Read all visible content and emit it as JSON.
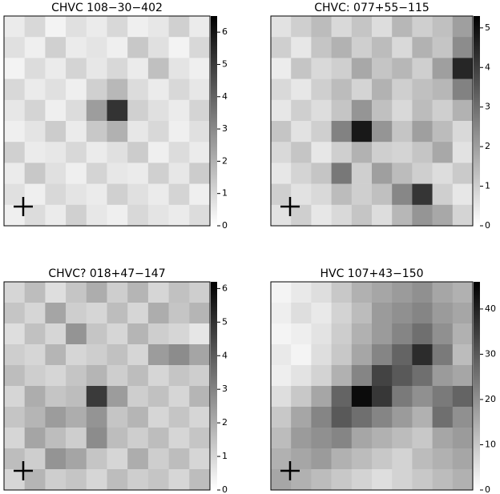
{
  "chart_data": [
    {
      "type": "heatmap",
      "title": "CHVC 108−30−402",
      "colormap": [
        "#ffffff",
        "#000000"
      ],
      "zlim": [
        0,
        6.5
      ],
      "zticks": [
        0,
        1,
        2,
        3,
        4,
        5,
        6
      ],
      "values": [
        [
          0.5,
          1,
          0.3,
          0.8,
          0.5,
          1,
          0.4,
          0.6,
          1.2,
          0.5
        ],
        [
          0.8,
          0.4,
          1.2,
          0.5,
          0.7,
          0.4,
          1.4,
          0.8,
          0.3,
          1
        ],
        [
          0.3,
          0.9,
          0.5,
          1.1,
          0.6,
          1,
          0.5,
          1.6,
          0.7,
          0.4
        ],
        [
          1,
          0.5,
          0.8,
          0.4,
          1.2,
          1.8,
          0.9,
          0.5,
          1,
          0.6
        ],
        [
          0.6,
          1.1,
          0.4,
          0.9,
          2.5,
          5.2,
          1.2,
          0.8,
          0.5,
          1.1
        ],
        [
          0.4,
          0.7,
          1.3,
          0.5,
          1.4,
          2,
          0.6,
          1,
          0.4,
          0.8
        ],
        [
          1.2,
          0.5,
          0.6,
          1,
          0.5,
          0.8,
          1.3,
          0.4,
          0.9,
          0.5
        ],
        [
          0.5,
          1.4,
          0.8,
          0.4,
          1.1,
          0.6,
          0.5,
          1.2,
          0.6,
          1.3
        ],
        [
          0.8,
          0.4,
          1,
          0.7,
          0.5,
          1.2,
          0.8,
          0.5,
          1.1,
          0.4
        ],
        [
          0.4,
          0.9,
          0.5,
          1.2,
          0.6,
          0.4,
          1,
          0.7,
          0.5,
          0.9
        ]
      ]
    },
    {
      "type": "heatmap",
      "title": "CHVC: 077+55−115",
      "colormap": [
        "#ffffff",
        "#000000"
      ],
      "zlim": [
        0,
        5.3
      ],
      "zticks": [
        0,
        1,
        2,
        3,
        4,
        5
      ],
      "values": [
        [
          0.6,
          1,
          1.4,
          0.8,
          1.2,
          0.7,
          1.5,
          1,
          1.3,
          2
        ],
        [
          1,
          0.5,
          1.2,
          1.6,
          1,
          1.4,
          0.8,
          1.6,
          1.2,
          2.4
        ],
        [
          0.4,
          1.2,
          0.8,
          1,
          1.8,
          1.2,
          1.5,
          1,
          2,
          4.5
        ],
        [
          0.8,
          0.5,
          1,
          1.4,
          0.9,
          1.6,
          1,
          1.3,
          1.5,
          2.6
        ],
        [
          0.5,
          1,
          0.7,
          1.2,
          2.2,
          1.3,
          0.8,
          1.4,
          1,
          1.6
        ],
        [
          1.2,
          0.6,
          1,
          2.6,
          4.8,
          2.2,
          1.2,
          2,
          1.4,
          0.8
        ],
        [
          0.8,
          1.2,
          0.5,
          1,
          1.6,
          1,
          0.9,
          1.2,
          1.8,
          0.6
        ],
        [
          0.5,
          0.9,
          1.2,
          2.8,
          1,
          2,
          1.4,
          1,
          0.7,
          1.1
        ],
        [
          1,
          0.6,
          0.8,
          1.4,
          1,
          1.3,
          2.5,
          4.2,
          1,
          0.5
        ],
        [
          0.6,
          1,
          0.5,
          0.8,
          1.2,
          0.7,
          1.5,
          2.2,
          1.8,
          0.9
        ]
      ]
    },
    {
      "type": "heatmap",
      "title": "CHVC? 018+47−147",
      "colormap": [
        "#ffffff",
        "#000000"
      ],
      "zlim": [
        0,
        6.2
      ],
      "zticks": [
        0,
        1,
        2,
        3,
        4,
        5,
        6
      ],
      "values": [
        [
          1,
          1.6,
          0.8,
          1.4,
          2,
          1.2,
          1.8,
          1,
          1.5,
          1.2
        ],
        [
          1.4,
          1,
          2.2,
          1.2,
          1,
          1.6,
          1,
          2,
          1.4,
          1.8
        ],
        [
          0.8,
          1.5,
          1,
          2.6,
          1.4,
          1,
          1.8,
          1.2,
          1,
          0.6
        ],
        [
          1.2,
          1,
          1.8,
          1,
          1.2,
          1.5,
          1,
          2.4,
          2.8,
          2.2
        ],
        [
          1.6,
          1.2,
          1,
          1.4,
          1.8,
          1.2,
          1.6,
          1,
          1.4,
          1.2
        ],
        [
          1,
          2,
          1.4,
          1.6,
          4.8,
          2.4,
          1.2,
          1.5,
          1,
          1.8
        ],
        [
          1.4,
          1.8,
          2.4,
          2,
          2.6,
          1.4,
          1.8,
          1,
          1.4,
          1
        ],
        [
          1,
          2.2,
          1.6,
          1.2,
          2.8,
          1.6,
          1.2,
          1.6,
          1,
          1.4
        ],
        [
          1.6,
          1.2,
          2.6,
          2.2,
          1.4,
          1,
          2,
          1.2,
          1.6,
          1
        ],
        [
          1,
          1.8,
          1.2,
          1.4,
          1,
          1.6,
          1.2,
          1.4,
          1,
          1.6
        ]
      ]
    },
    {
      "type": "heatmap",
      "title": "HVC 107+43−150",
      "colormap": [
        "#ffffff",
        "#000000"
      ],
      "zlim": [
        0,
        46
      ],
      "zticks": [
        0,
        10,
        20,
        30,
        40
      ],
      "values": [
        [
          2,
          4,
          6,
          10,
          14,
          16,
          18,
          20,
          16,
          14
        ],
        [
          3,
          6,
          4,
          8,
          12,
          18,
          20,
          22,
          18,
          16
        ],
        [
          2,
          3,
          5,
          9,
          14,
          18,
          22,
          26,
          20,
          14
        ],
        [
          4,
          2,
          6,
          10,
          16,
          22,
          28,
          38,
          24,
          12
        ],
        [
          3,
          5,
          8,
          14,
          22,
          34,
          30,
          26,
          18,
          16
        ],
        [
          6,
          10,
          16,
          28,
          44,
          36,
          24,
          20,
          24,
          28
        ],
        [
          10,
          16,
          22,
          30,
          26,
          22,
          18,
          14,
          26,
          20
        ],
        [
          12,
          18,
          20,
          22,
          16,
          14,
          12,
          10,
          16,
          18
        ],
        [
          14,
          16,
          18,
          14,
          12,
          10,
          8,
          12,
          14,
          16
        ],
        [
          16,
          14,
          12,
          10,
          8,
          6,
          8,
          10,
          12,
          14
        ]
      ]
    }
  ]
}
